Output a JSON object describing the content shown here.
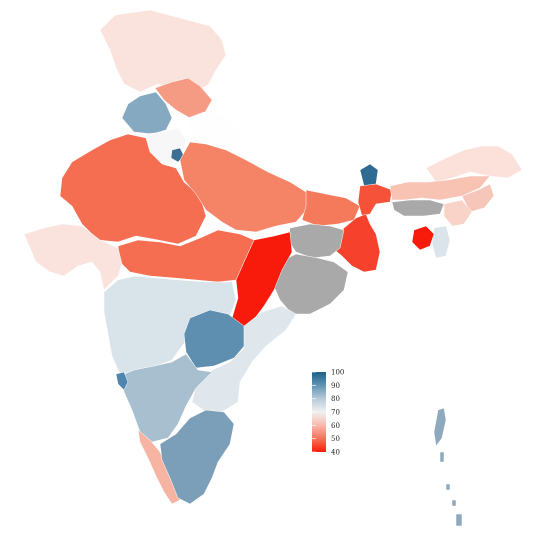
{
  "legend": {
    "ticks": [
      "100",
      "90",
      "80",
      "70",
      "60",
      "50",
      "40"
    ],
    "gradient": [
      "#1f5f86",
      "#5f94b4",
      "#b7cad8",
      "#f1f1f1",
      "#f7b9ad",
      "#f6725a",
      "#f81a0a"
    ]
  },
  "colors": {
    "no_data": "#a9a9a9",
    "land_outline": "#c9c9c9"
  },
  "regions": [
    {
      "name": "jammu-kashmir",
      "fill": "#fbe3dd"
    },
    {
      "name": "ladakh-extension",
      "fill": "#fbe3dd"
    },
    {
      "name": "himachal",
      "fill": "#f59a83"
    },
    {
      "name": "punjab",
      "fill": "#86a9c2"
    },
    {
      "name": "uttarakhand",
      "fill": "#fefefe"
    },
    {
      "name": "haryana",
      "fill": "#f7f7f7"
    },
    {
      "name": "delhi",
      "fill": "#3b6f94"
    },
    {
      "name": "rajasthan",
      "fill": "#f56e52"
    },
    {
      "name": "uttar-pradesh",
      "fill": "#f58466"
    },
    {
      "name": "bihar",
      "fill": "#f57a5c"
    },
    {
      "name": "sikkim",
      "fill": "#2f6a93"
    },
    {
      "name": "north-bengal",
      "fill": "#f65239"
    },
    {
      "name": "west-bengal",
      "fill": "#f6422c"
    },
    {
      "name": "jharkhand",
      "fill": "#a9a9a9"
    },
    {
      "name": "odisha",
      "fill": "#a9a9a9"
    },
    {
      "name": "chhattisgarh",
      "fill": "#f81a0a"
    },
    {
      "name": "madhya-pradesh",
      "fill": "#f56e52"
    },
    {
      "name": "gujarat",
      "fill": "#fbe3dd"
    },
    {
      "name": "maharashtra",
      "fill": "#d9e3ea"
    },
    {
      "name": "telangana",
      "fill": "#5f8fb0"
    },
    {
      "name": "andhra-pradesh",
      "fill": "#dfe6ec"
    },
    {
      "name": "karnataka",
      "fill": "#a8bfd0"
    },
    {
      "name": "goa",
      "fill": "#4f86ad"
    },
    {
      "name": "kerala",
      "fill": "#f7b4a3"
    },
    {
      "name": "tamil-nadu",
      "fill": "#7c9fb9"
    },
    {
      "name": "arunachal",
      "fill": "#fbe1da"
    },
    {
      "name": "assam",
      "fill": "#f9c3b4"
    },
    {
      "name": "meghalaya",
      "fill": "#a9a9a9"
    },
    {
      "name": "nagaland",
      "fill": "#f7c6ba"
    },
    {
      "name": "manipur",
      "fill": "#f9d3c8"
    },
    {
      "name": "mizoram",
      "fill": "#dbe4eb"
    },
    {
      "name": "tripura",
      "fill": "#f81a0a"
    },
    {
      "name": "andaman-islands",
      "fill": "#8ea9bd"
    }
  ]
}
